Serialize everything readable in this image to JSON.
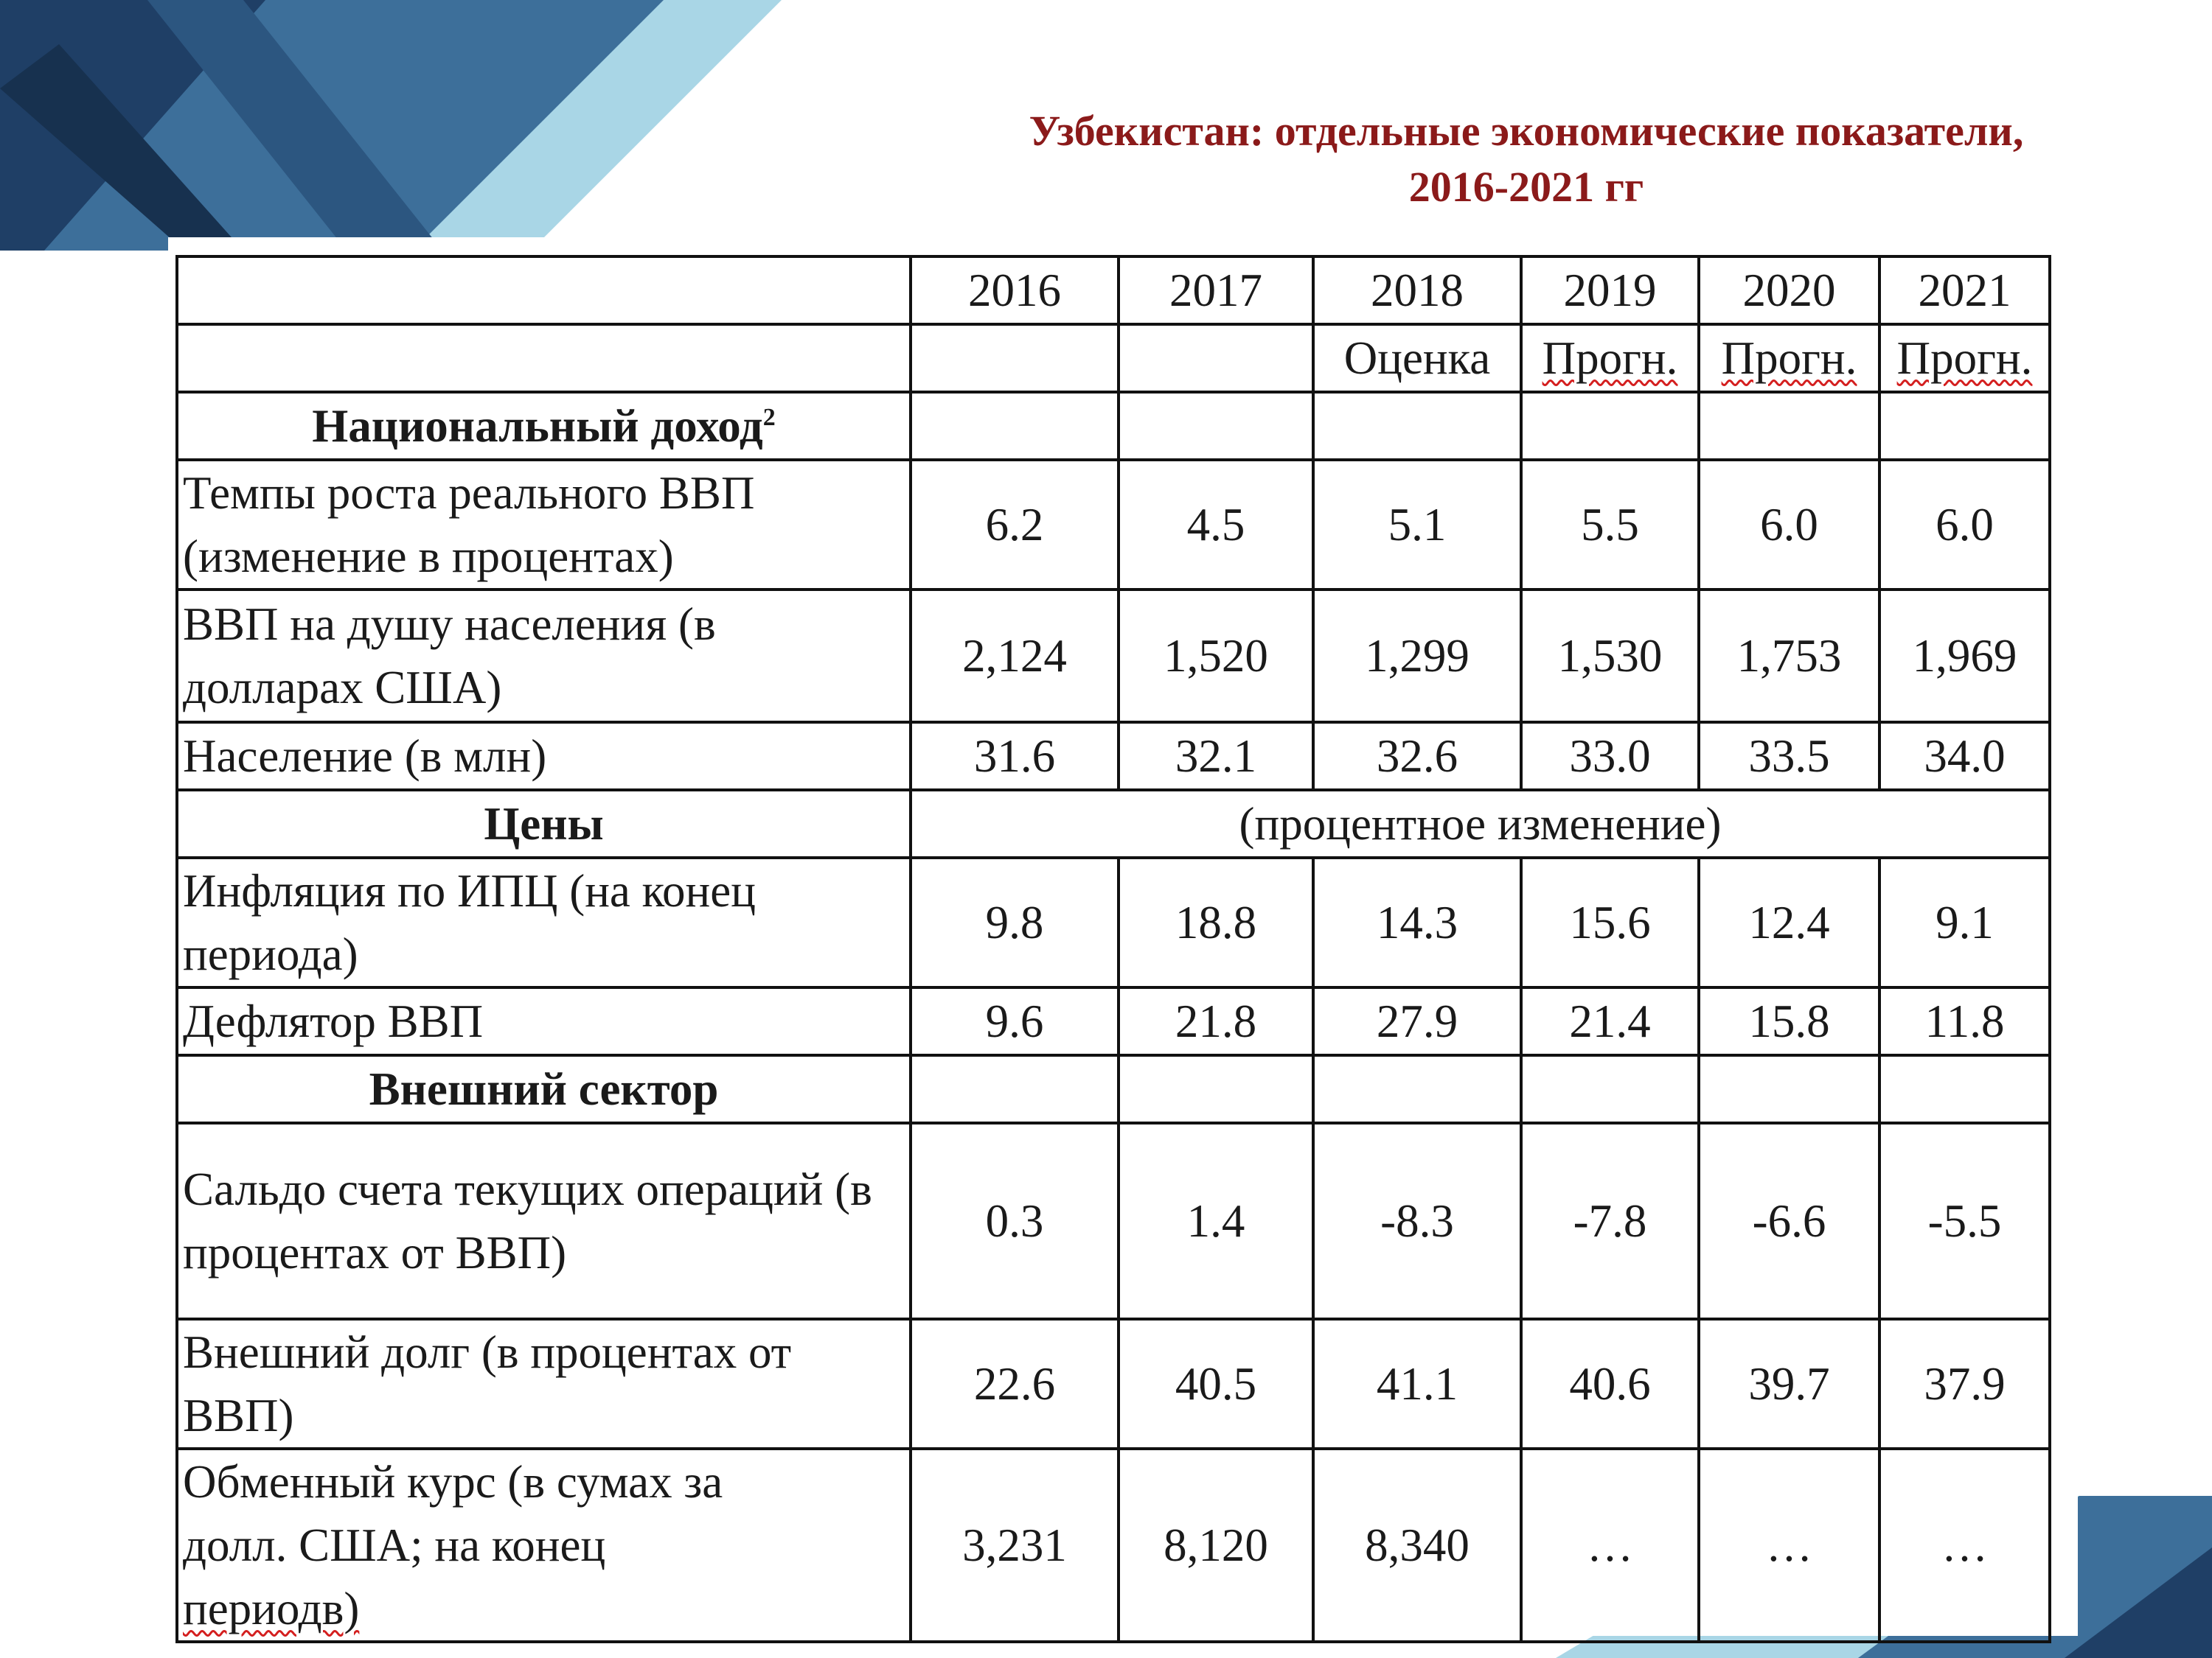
{
  "title": {
    "line1": "Узбекистан: отдельные экономические показатели,",
    "line2": "2016-2021 гг"
  },
  "table": {
    "years": [
      "2016",
      "2017",
      "2018",
      "2019",
      "2020",
      "2021"
    ],
    "notes": [
      "",
      "",
      "Оценка",
      "Прогн.",
      "Прогн.",
      "Прогн."
    ],
    "sections": {
      "income": {
        "label": "Национальный доход",
        "sup": "2"
      },
      "prices": {
        "label": "Цены",
        "span_note": "(процентное изменение)"
      },
      "external": {
        "label": "Внешний сектор"
      }
    },
    "rows": {
      "gdp_growth": {
        "label": "Темпы роста реального ВВП (изменение в процентах)",
        "values": [
          "6.2",
          "4.5",
          "5.1",
          "5.5",
          "6.0",
          "6.0"
        ]
      },
      "gdp_per_capita": {
        "label": "ВВП на душу населения (в долларах США)",
        "values": [
          "2,124",
          "1,520",
          "1,299",
          "1,530",
          "1,753",
          "1,969"
        ]
      },
      "population": {
        "label": "Население (в млн)",
        "values": [
          "31.6",
          "32.1",
          "32.6",
          "33.0",
          "33.5",
          "34.0"
        ]
      },
      "cpi": {
        "label": "Инфляция по ИПЦ (на конец периода)",
        "values": [
          "9.8",
          "18.8",
          "14.3",
          "15.6",
          "12.4",
          "9.1"
        ]
      },
      "deflator": {
        "label": "Дефлятор ВВП",
        "values": [
          "9.6",
          "21.8",
          "27.9",
          "21.4",
          "15.8",
          "11.8"
        ]
      },
      "current_account": {
        "label": "Сальдо счета текущих операций (в процентах от ВВП)",
        "values": [
          "0.3",
          "1.4",
          "-8.3",
          "-7.8",
          "-6.6",
          "-5.5"
        ]
      },
      "external_debt": {
        "label": "Внешний долг (в процентах от ВВП)",
        "values": [
          "22.6",
          "40.5",
          "41.1",
          "40.6",
          "39.7",
          "37.9"
        ]
      },
      "exchange_rate": {
        "label_line1": "Обменный курс (в сумах за",
        "label_line2": "долл. США; на конец",
        "label_line3": "периодв)",
        "values": [
          "3,231",
          "8,120",
          "8,340",
          "…",
          "…",
          "…"
        ]
      }
    }
  },
  "colors": {
    "title": "#8b1a1a",
    "decor_dark": "#1f3f66",
    "decor_mid": "#3d6f9a",
    "decor_light": "#a9d6e6"
  }
}
